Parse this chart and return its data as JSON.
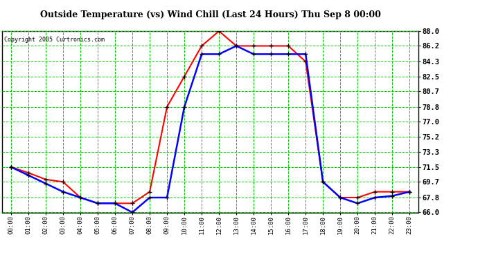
{
  "title": "Outside Temperature (vs) Wind Chill (Last 24 Hours) Thu Sep 8 00:00",
  "copyright": "Copyright 2005 Curtronics.com",
  "hours": [
    "00:00",
    "01:00",
    "02:00",
    "03:00",
    "04:00",
    "05:00",
    "06:00",
    "07:00",
    "08:00",
    "09:00",
    "10:00",
    "11:00",
    "12:00",
    "13:00",
    "14:00",
    "15:00",
    "16:00",
    "17:00",
    "18:00",
    "19:00",
    "20:00",
    "21:00",
    "22:00",
    "23:00"
  ],
  "outside_temp": [
    71.5,
    70.8,
    70.0,
    69.7,
    67.8,
    67.1,
    67.1,
    67.1,
    68.5,
    78.8,
    82.5,
    86.2,
    88.0,
    86.2,
    86.2,
    86.2,
    86.2,
    84.3,
    69.7,
    67.8,
    67.8,
    68.5,
    68.5,
    68.5
  ],
  "wind_chill": [
    71.5,
    70.5,
    69.5,
    68.5,
    67.8,
    67.1,
    67.1,
    66.0,
    67.8,
    67.8,
    78.8,
    85.2,
    85.2,
    86.2,
    85.2,
    85.2,
    85.2,
    85.2,
    69.7,
    67.8,
    67.1,
    67.8,
    68.0,
    68.5
  ],
  "temp_color": "#ff0000",
  "chill_color": "#0000ff",
  "bg_color": "#ffffff",
  "grid_color": "#00cc00",
  "title_color": "#000000",
  "ylim_min": 66.0,
  "ylim_max": 88.0,
  "yticks": [
    66.0,
    67.8,
    69.7,
    71.5,
    73.3,
    75.2,
    77.0,
    78.8,
    80.7,
    82.5,
    84.3,
    86.2,
    88.0
  ],
  "ytick_labels": [
    "66.0",
    "67.8",
    "69.7",
    "71.5",
    "73.3",
    "75.2",
    "77.0",
    "78.8",
    "80.7",
    "82.5",
    "84.3",
    "86.2",
    "88.0"
  ]
}
